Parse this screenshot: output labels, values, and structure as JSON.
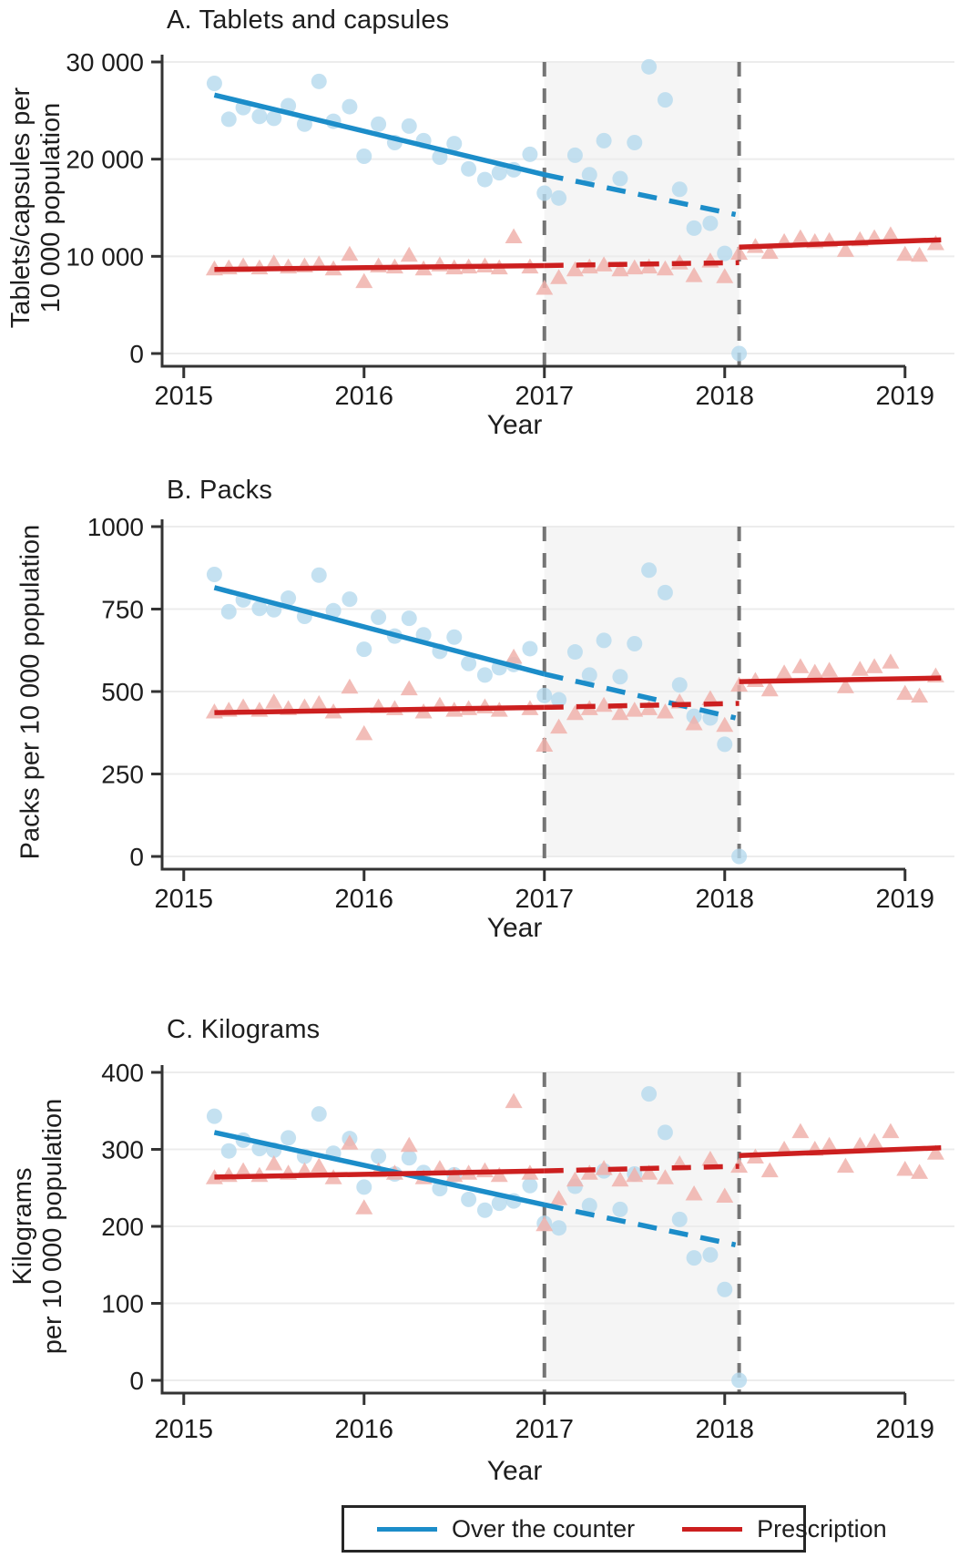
{
  "colors": {
    "otc_line": "#1c8dc9",
    "otc_marker": "#b5d9ee",
    "rx_line": "#cc1f1f",
    "rx_marker": "#f0b1ac",
    "band_fill": "#f5f5f5",
    "vline": "#757575",
    "gridline": "#ececec",
    "axis": "#333333",
    "text": "#1d1d1d"
  },
  "legend": {
    "items": [
      {
        "key": "otc",
        "label": "Over the counter"
      },
      {
        "key": "rx",
        "label": "Prescription"
      }
    ]
  },
  "chart_data": [
    {
      "type": "scatter",
      "title": "A. Tablets and capsules",
      "ylabel_lines": [
        "Tablets/capsules per",
        "10 000 population"
      ],
      "xlabel": "Year",
      "ylim": [
        0,
        30000
      ],
      "xlim": [
        2014.88,
        2019.26
      ],
      "yticks": [
        {
          "v": 0,
          "label": "0"
        },
        {
          "v": 10000,
          "label": "10 000"
        },
        {
          "v": 20000,
          "label": "20 000"
        },
        {
          "v": 30000,
          "label": "30 000"
        }
      ],
      "xticks": [
        2015,
        2016,
        2017,
        2018,
        2019
      ],
      "interruption_band": [
        2017.0,
        2018.08
      ],
      "series": [
        {
          "name": "Over the counter",
          "marker": "circle",
          "x": [
            2015.17,
            2015.25,
            2015.33,
            2015.42,
            2015.5,
            2015.58,
            2015.67,
            2015.75,
            2015.83,
            2015.92,
            2016.0,
            2016.08,
            2016.17,
            2016.25,
            2016.33,
            2016.42,
            2016.5,
            2016.58,
            2016.67,
            2016.75,
            2016.83,
            2016.92,
            2017.0,
            2017.08,
            2017.17,
            2017.25,
            2017.33,
            2017.42,
            2017.5,
            2017.58,
            2017.67,
            2017.75,
            2017.83,
            2017.92,
            2018.0,
            2018.08
          ],
          "y": [
            27800,
            24100,
            25300,
            24400,
            24200,
            25500,
            23600,
            28000,
            23900,
            25400,
            20300,
            23600,
            21700,
            23400,
            21900,
            20200,
            21600,
            19000,
            17900,
            18600,
            18900,
            20500,
            16500,
            16000,
            20400,
            18400,
            21900,
            18000,
            21700,
            29500,
            26100,
            16900,
            12900,
            13400,
            10300,
            0
          ]
        },
        {
          "name": "Prescription",
          "marker": "triangle",
          "x": [
            2015.17,
            2015.25,
            2015.33,
            2015.42,
            2015.5,
            2015.58,
            2015.67,
            2015.75,
            2015.83,
            2015.92,
            2016.0,
            2016.08,
            2016.17,
            2016.25,
            2016.33,
            2016.42,
            2016.5,
            2016.58,
            2016.67,
            2016.75,
            2016.83,
            2016.92,
            2017.0,
            2017.08,
            2017.17,
            2017.25,
            2017.33,
            2017.42,
            2017.5,
            2017.58,
            2017.67,
            2017.75,
            2017.83,
            2017.92,
            2018.0,
            2018.08,
            2018.17,
            2018.25,
            2018.33,
            2018.42,
            2018.5,
            2018.58,
            2018.67,
            2018.75,
            2018.83,
            2018.92,
            2019.0,
            2019.08,
            2019.17
          ],
          "y": [
            8700,
            8800,
            9000,
            8800,
            9300,
            8900,
            9000,
            9200,
            8700,
            10200,
            7400,
            9000,
            8900,
            10100,
            8700,
            9100,
            8800,
            8900,
            9000,
            8800,
            12000,
            8900,
            6700,
            7800,
            8600,
            8900,
            9100,
            8600,
            8800,
            8900,
            8700,
            9300,
            8000,
            9500,
            7900,
            10300,
            11000,
            10400,
            11500,
            11900,
            11500,
            11600,
            10600,
            11700,
            11900,
            12200,
            10200,
            10100,
            11300
          ]
        }
      ],
      "trend_lines": [
        {
          "series": "Over the counter",
          "style": "solid",
          "x1": 2015.17,
          "y1": 26600,
          "x2": 2017.0,
          "y2": 18400
        },
        {
          "series": "Over the counter",
          "style": "dashed",
          "x1": 2017.0,
          "y1": 18400,
          "x2": 2018.06,
          "y2": 14300
        },
        {
          "series": "Prescription",
          "style": "solid",
          "x1": 2015.17,
          "y1": 8650,
          "x2": 2017.0,
          "y2": 9050
        },
        {
          "series": "Prescription",
          "style": "dashed",
          "x1": 2017.0,
          "y1": 9050,
          "x2": 2018.08,
          "y2": 9350
        },
        {
          "series": "Prescription",
          "style": "solid",
          "x1": 2018.08,
          "y1": 10950,
          "x2": 2019.2,
          "y2": 11700
        }
      ]
    },
    {
      "type": "scatter",
      "title": "B. Packs",
      "ylabel_lines": [
        "Packs per 10 000 population"
      ],
      "xlabel": "Year",
      "ylim": [
        0,
        1000
      ],
      "xlim": [
        2014.88,
        2019.26
      ],
      "yticks": [
        {
          "v": 0,
          "label": "0"
        },
        {
          "v": 250,
          "label": "250"
        },
        {
          "v": 500,
          "label": "500"
        },
        {
          "v": 750,
          "label": "750"
        },
        {
          "v": 1000,
          "label": "1000"
        }
      ],
      "xticks": [
        2015,
        2016,
        2017,
        2018,
        2019
      ],
      "interruption_band": [
        2017.0,
        2018.08
      ],
      "series": [
        {
          "name": "Over the counter",
          "marker": "circle",
          "x": [
            2015.17,
            2015.25,
            2015.33,
            2015.42,
            2015.5,
            2015.58,
            2015.67,
            2015.75,
            2015.83,
            2015.92,
            2016.0,
            2016.08,
            2016.17,
            2016.25,
            2016.33,
            2016.42,
            2016.5,
            2016.58,
            2016.67,
            2016.75,
            2016.83,
            2016.92,
            2017.0,
            2017.08,
            2017.17,
            2017.25,
            2017.33,
            2017.42,
            2017.5,
            2017.58,
            2017.67,
            2017.75,
            2017.83,
            2017.92,
            2018.0,
            2018.08
          ],
          "y": [
            855,
            742,
            778,
            752,
            748,
            783,
            728,
            853,
            745,
            780,
            628,
            725,
            668,
            722,
            672,
            622,
            665,
            585,
            550,
            572,
            582,
            630,
            488,
            475,
            620,
            550,
            655,
            545,
            645,
            868,
            800,
            520,
            425,
            420,
            340,
            0
          ]
        },
        {
          "name": "Prescription",
          "marker": "triangle",
          "x": [
            2015.17,
            2015.25,
            2015.33,
            2015.42,
            2015.5,
            2015.58,
            2015.67,
            2015.75,
            2015.83,
            2015.92,
            2016.0,
            2016.08,
            2016.17,
            2016.25,
            2016.33,
            2016.42,
            2016.5,
            2016.58,
            2016.67,
            2016.75,
            2016.83,
            2016.92,
            2017.0,
            2017.08,
            2017.17,
            2017.25,
            2017.33,
            2017.42,
            2017.5,
            2017.58,
            2017.67,
            2017.75,
            2017.83,
            2017.92,
            2018.0,
            2018.08,
            2018.17,
            2018.25,
            2018.33,
            2018.42,
            2018.5,
            2018.58,
            2018.67,
            2018.75,
            2018.83,
            2018.92,
            2019.0,
            2019.08,
            2019.17
          ],
          "y": [
            438,
            443,
            453,
            443,
            468,
            448,
            453,
            463,
            438,
            513,
            372,
            453,
            448,
            508,
            438,
            458,
            443,
            448,
            453,
            443,
            604,
            448,
            337,
            392,
            433,
            448,
            458,
            433,
            443,
            448,
            438,
            468,
            402,
            478,
            397,
            519,
            533,
            505,
            556,
            575,
            558,
            564,
            514,
            567,
            575,
            589,
            494,
            486,
            547
          ]
        }
      ],
      "trend_lines": [
        {
          "series": "Over the counter",
          "style": "solid",
          "x1": 2015.17,
          "y1": 815,
          "x2": 2017.0,
          "y2": 553
        },
        {
          "series": "Over the counter",
          "style": "dashed",
          "x1": 2017.0,
          "y1": 553,
          "x2": 2018.06,
          "y2": 420
        },
        {
          "series": "Prescription",
          "style": "solid",
          "x1": 2015.17,
          "y1": 436,
          "x2": 2017.0,
          "y2": 452
        },
        {
          "series": "Prescription",
          "style": "dashed",
          "x1": 2017.0,
          "y1": 452,
          "x2": 2018.08,
          "y2": 464
        },
        {
          "series": "Prescription",
          "style": "solid",
          "x1": 2018.08,
          "y1": 530,
          "x2": 2019.2,
          "y2": 541
        }
      ]
    },
    {
      "type": "scatter",
      "title": "C. Kilograms",
      "ylabel_lines": [
        "Kilograms",
        "per 10 000 population"
      ],
      "xlabel": "Year",
      "ylim": [
        0,
        400
      ],
      "xlim": [
        2014.88,
        2019.26
      ],
      "yticks": [
        {
          "v": 0,
          "label": "0"
        },
        {
          "v": 100,
          "label": "100"
        },
        {
          "v": 200,
          "label": "200"
        },
        {
          "v": 300,
          "label": "300"
        },
        {
          "v": 400,
          "label": "400"
        }
      ],
      "xticks": [
        2015,
        2016,
        2017,
        2018,
        2019
      ],
      "interruption_band": [
        2017.0,
        2018.08
      ],
      "series": [
        {
          "name": "Over the counter",
          "marker": "circle",
          "x": [
            2015.17,
            2015.25,
            2015.33,
            2015.42,
            2015.5,
            2015.58,
            2015.67,
            2015.75,
            2015.83,
            2015.92,
            2016.0,
            2016.08,
            2016.17,
            2016.25,
            2016.33,
            2016.42,
            2016.5,
            2016.58,
            2016.67,
            2016.75,
            2016.83,
            2016.92,
            2017.0,
            2017.08,
            2017.17,
            2017.25,
            2017.33,
            2017.42,
            2017.5,
            2017.58,
            2017.67,
            2017.75,
            2017.83,
            2017.92,
            2018.0,
            2018.08
          ],
          "y": [
            343,
            298,
            312,
            301,
            299,
            315,
            291,
            346,
            295,
            314,
            251,
            291,
            268,
            289,
            270,
            249,
            267,
            235,
            221,
            230,
            233,
            253,
            204,
            198,
            252,
            227,
            272,
            222,
            268,
            372,
            322,
            209,
            159,
            163,
            118,
            0
          ]
        },
        {
          "name": "Prescription",
          "marker": "triangle",
          "x": [
            2015.17,
            2015.25,
            2015.33,
            2015.42,
            2015.5,
            2015.58,
            2015.67,
            2015.75,
            2015.83,
            2015.92,
            2016.0,
            2016.08,
            2016.17,
            2016.25,
            2016.33,
            2016.42,
            2016.5,
            2016.58,
            2016.67,
            2016.75,
            2016.83,
            2016.92,
            2017.0,
            2017.08,
            2017.17,
            2017.25,
            2017.33,
            2017.42,
            2017.5,
            2017.58,
            2017.67,
            2017.75,
            2017.83,
            2017.92,
            2018.0,
            2018.08,
            2018.17,
            2018.25,
            2018.33,
            2018.42,
            2018.5,
            2018.58,
            2018.67,
            2018.75,
            2018.83,
            2018.92,
            2019.0,
            2019.08,
            2019.17
          ],
          "y": [
            263,
            266,
            272,
            266,
            281,
            269,
            272,
            278,
            263,
            308,
            224,
            272,
            269,
            305,
            263,
            275,
            266,
            269,
            272,
            266,
            362,
            269,
            202,
            236,
            260,
            269,
            275,
            260,
            266,
            269,
            263,
            281,
            242,
            287,
            239,
            278,
            290,
            272,
            300,
            323,
            300,
            305,
            278,
            305,
            310,
            323,
            274,
            270,
            295
          ]
        }
      ],
      "trend_lines": [
        {
          "series": "Over the counter",
          "style": "solid",
          "x1": 2015.17,
          "y1": 322,
          "x2": 2017.0,
          "y2": 228
        },
        {
          "series": "Over the counter",
          "style": "dashed",
          "x1": 2017.0,
          "y1": 228,
          "x2": 2018.06,
          "y2": 176
        },
        {
          "series": "Prescription",
          "style": "solid",
          "x1": 2015.17,
          "y1": 264,
          "x2": 2017.0,
          "y2": 272
        },
        {
          "series": "Prescription",
          "style": "dashed",
          "x1": 2017.0,
          "y1": 272,
          "x2": 2018.08,
          "y2": 278
        },
        {
          "series": "Prescription",
          "style": "solid",
          "x1": 2018.08,
          "y1": 292,
          "x2": 2019.2,
          "y2": 302
        }
      ]
    }
  ]
}
